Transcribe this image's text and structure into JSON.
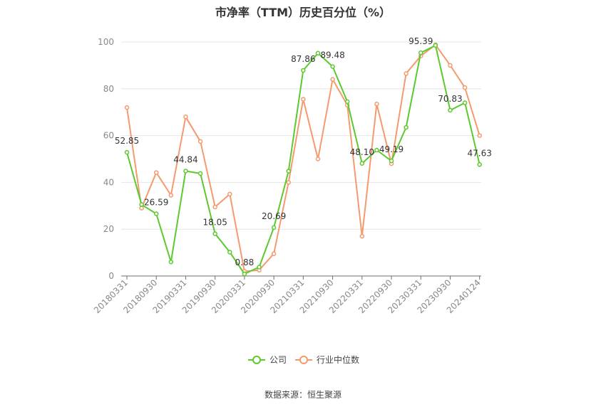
{
  "title": "市净率（TTM）历史百分位（%）",
  "source": "数据来源：恒生聚源",
  "chart_data": {
    "type": "line",
    "ylim": [
      0,
      100
    ],
    "yticks": [
      0,
      20,
      40,
      60,
      80,
      100
    ],
    "xtick_labels": [
      "20180331",
      "20180930",
      "20190331",
      "20190930",
      "20200331",
      "20200930",
      "20210331",
      "20210930",
      "20220331",
      "20220930",
      "20230331",
      "20230930",
      "20240124"
    ],
    "x": [
      "20180331",
      "20180630",
      "20180930",
      "20181231",
      "20190331",
      "20190630",
      "20190930",
      "20191231",
      "20200331",
      "20200630",
      "20200930",
      "20201231",
      "20210331",
      "20210630",
      "20210930",
      "20211231",
      "20220331",
      "20220630",
      "20220930",
      "20221231",
      "20230331",
      "20230630",
      "20230930",
      "20231231",
      "20240124"
    ],
    "series": [
      {
        "name": "公司",
        "color": "#5cc92e",
        "values": [
          52.85,
          30.5,
          26.59,
          6.0,
          44.84,
          43.8,
          18.05,
          10.2,
          0.88,
          3.8,
          20.69,
          44.8,
          87.86,
          95.2,
          89.48,
          74.5,
          48.1,
          53.8,
          49.19,
          63.5,
          95.39,
          98.5,
          70.83,
          74.0,
          47.63
        ],
        "labels": {
          "0": "52.85",
          "2": "26.59",
          "4": "44.84",
          "6": "18.05",
          "8": "0.88",
          "10": "20.69",
          "12": "87.86",
          "14": "89.48",
          "16": "48.10",
          "18": "49.19",
          "20": "95.39",
          "22": "70.83",
          "24": "47.63"
        }
      },
      {
        "name": "行业中位数",
        "color": "#f59a6e",
        "values": [
          72.0,
          29.0,
          44.2,
          34.5,
          68.0,
          57.5,
          29.5,
          35.0,
          2.0,
          2.5,
          9.5,
          40.0,
          75.5,
          50.0,
          84.0,
          73.0,
          17.0,
          73.5,
          48.0,
          86.5,
          94.0,
          98.8,
          90.0,
          80.5,
          60.0
        ]
      }
    ],
    "grid": true,
    "legend_position": "bottom"
  }
}
